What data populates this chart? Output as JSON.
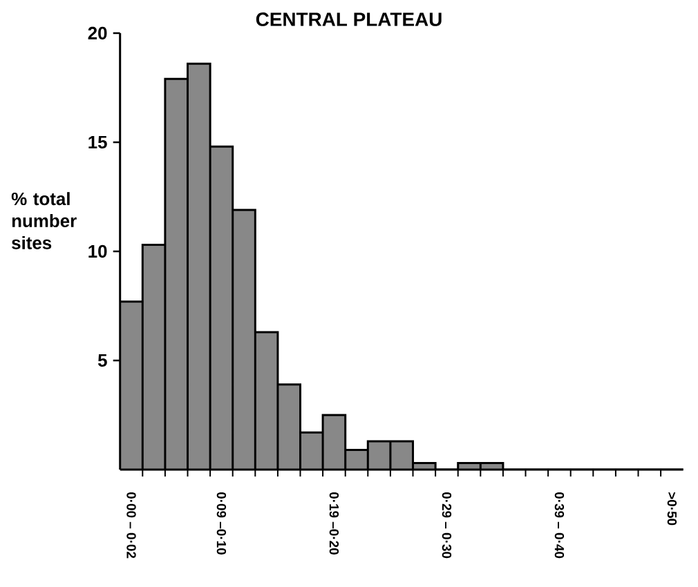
{
  "chart_data": {
    "type": "bar",
    "title": "CENTRAL PLATEAU",
    "ylabel": "% total number sites",
    "categories": [
      "0·00 – 0·02",
      null,
      null,
      null,
      "0·09 –0·10",
      null,
      null,
      null,
      null,
      "0·19 –0·20",
      null,
      null,
      null,
      null,
      "0·29 – 0·30",
      null,
      null,
      null,
      null,
      "0·39 – 0·40",
      null,
      null,
      null,
      null,
      ">0·50"
    ],
    "values": [
      7.7,
      10.3,
      17.9,
      18.6,
      14.8,
      11.9,
      6.3,
      3.9,
      1.7,
      2.5,
      0.9,
      1.3,
      1.3,
      0.3,
      0,
      0.3,
      0.3,
      0,
      0,
      0,
      0,
      0,
      0,
      0,
      0
    ],
    "color": "#888888",
    "ylim": [
      0,
      20
    ],
    "yticks": [
      5,
      10,
      15,
      20
    ],
    "grid": false
  }
}
